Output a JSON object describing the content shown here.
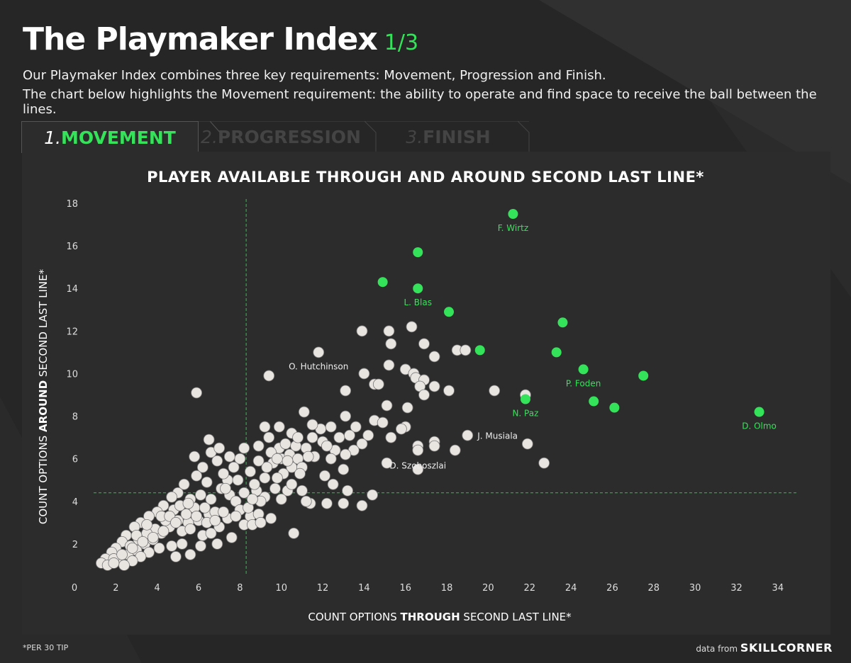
{
  "header": {
    "title": "The Playmaker Index",
    "page": "1/3",
    "line1": "Our Playmaker Index combines three key requirements: Movement, Progression and Finish.",
    "line2": "The chart below highlights the Movement requirement: the ability to operate and find space to receive the ball between the lines."
  },
  "tabs": [
    {
      "num": "1.",
      "label": "MOVEMENT",
      "active": true
    },
    {
      "num": "2.",
      "label": "PROGRESSION",
      "active": false
    },
    {
      "num": "3.",
      "label": "FINISH",
      "active": false
    }
  ],
  "footer": {
    "note": "*PER 30 TIP",
    "credit_prefix": "data from",
    "credit_brand": "SKILLCORNER"
  },
  "colors": {
    "background": "#262626",
    "panel": "#2c2c2c",
    "highlight": "#35e35a",
    "point": "#e8e4e0",
    "point_stroke": "#777777"
  },
  "chart_data": {
    "type": "scatter",
    "title": "PLAYER AVAILABLE THROUGH AND AROUND SECOND LAST LINE*",
    "xlabel_parts": [
      "COUNT OPTIONS ",
      "THROUGH",
      " SECOND LAST LINE*"
    ],
    "ylabel_parts": [
      "COUNT OPTIONS ",
      "AROUND",
      " SECOND LAST LINE*"
    ],
    "xlim": [
      0,
      35
    ],
    "ylim": [
      0,
      18
    ],
    "xticks": [
      0,
      2,
      4,
      6,
      8,
      10,
      12,
      14,
      16,
      18,
      20,
      22,
      24,
      26,
      28,
      30,
      32,
      34
    ],
    "yticks": [
      0,
      2,
      4,
      6,
      8,
      10,
      12,
      14,
      16,
      18
    ],
    "reference_lines": {
      "x": 8.3,
      "y": 4.4
    },
    "highlighted": [
      {
        "x": 21.2,
        "y": 17.5,
        "label": "F. Wirtz"
      },
      {
        "x": 16.6,
        "y": 15.7,
        "label": ""
      },
      {
        "x": 14.9,
        "y": 14.3,
        "label": ""
      },
      {
        "x": 16.6,
        "y": 14.0,
        "label": "L. Blas"
      },
      {
        "x": 18.1,
        "y": 12.9,
        "label": ""
      },
      {
        "x": 23.6,
        "y": 12.4,
        "label": ""
      },
      {
        "x": 19.6,
        "y": 11.1,
        "label": ""
      },
      {
        "x": 23.3,
        "y": 11.0,
        "label": ""
      },
      {
        "x": 24.6,
        "y": 10.2,
        "label": "P. Foden"
      },
      {
        "x": 27.5,
        "y": 9.9,
        "label": ""
      },
      {
        "x": 21.8,
        "y": 8.8,
        "label": "N. Paz"
      },
      {
        "x": 25.1,
        "y": 8.7,
        "label": ""
      },
      {
        "x": 26.1,
        "y": 8.4,
        "label": ""
      },
      {
        "x": 33.1,
        "y": 8.2,
        "label": "D. Olmo"
      }
    ],
    "labeled_others": [
      {
        "x": 11.8,
        "y": 11.0,
        "label": "O. Hutchinson"
      },
      {
        "x": 19.0,
        "y": 7.1,
        "label": "J. Musiala"
      },
      {
        "x": 16.6,
        "y": 6.4,
        "label": "D. Szoboszlai"
      }
    ],
    "others": [
      [
        5.9,
        9.1
      ],
      [
        9.4,
        9.9
      ],
      [
        13.9,
        12.0
      ],
      [
        15.2,
        12.0
      ],
      [
        16.3,
        12.2
      ],
      [
        15.3,
        11.4
      ],
      [
        16.9,
        11.4
      ],
      [
        17.4,
        10.8
      ],
      [
        18.5,
        11.1
      ],
      [
        18.9,
        11.1
      ],
      [
        15.2,
        10.4
      ],
      [
        16.0,
        10.2
      ],
      [
        16.4,
        10.0
      ],
      [
        14.0,
        10.0
      ],
      [
        14.5,
        9.5
      ],
      [
        14.7,
        9.5
      ],
      [
        13.1,
        9.2
      ],
      [
        16.5,
        9.8
      ],
      [
        16.9,
        9.7
      ],
      [
        16.7,
        9.4
      ],
      [
        17.4,
        9.4
      ],
      [
        16.9,
        9.0
      ],
      [
        18.1,
        9.2
      ],
      [
        20.3,
        9.2
      ],
      [
        21.8,
        9.0
      ],
      [
        16.1,
        8.4
      ],
      [
        15.1,
        8.5
      ],
      [
        13.1,
        8.0
      ],
      [
        14.5,
        7.8
      ],
      [
        14.9,
        7.7
      ],
      [
        16.0,
        7.5
      ],
      [
        15.8,
        7.4
      ],
      [
        15.3,
        7.0
      ],
      [
        14.2,
        7.1
      ],
      [
        13.9,
        6.7
      ],
      [
        13.5,
        6.4
      ],
      [
        13.1,
        6.2
      ],
      [
        16.6,
        6.6
      ],
      [
        17.4,
        6.8
      ],
      [
        17.4,
        6.6
      ],
      [
        18.4,
        6.4
      ],
      [
        21.9,
        6.7
      ],
      [
        22.7,
        5.8
      ],
      [
        15.1,
        5.8
      ],
      [
        16.6,
        5.5
      ],
      [
        12.0,
        6.8
      ],
      [
        12.6,
        6.4
      ],
      [
        12.4,
        6.0
      ],
      [
        13.0,
        5.5
      ],
      [
        12.1,
        5.2
      ],
      [
        12.5,
        4.8
      ],
      [
        13.2,
        4.5
      ],
      [
        14.4,
        4.3
      ],
      [
        12.2,
        3.9
      ],
      [
        13.0,
        3.9
      ],
      [
        13.9,
        3.8
      ],
      [
        11.4,
        3.9
      ],
      [
        11.2,
        4.0
      ],
      [
        10.6,
        2.5
      ],
      [
        9.5,
        3.2
      ],
      [
        9.2,
        4.2
      ],
      [
        9.2,
        5.1
      ],
      [
        8.8,
        4.5
      ],
      [
        9.7,
        4.6
      ],
      [
        10.3,
        4.5
      ],
      [
        11.0,
        4.5
      ],
      [
        10.5,
        4.8
      ],
      [
        10.5,
        5.6
      ],
      [
        10.0,
        6.0
      ],
      [
        10.4,
        6.2
      ],
      [
        10.8,
        6.0
      ],
      [
        11.2,
        6.5
      ],
      [
        11.5,
        7.0
      ],
      [
        11.9,
        7.4
      ],
      [
        11.5,
        7.6
      ],
      [
        10.5,
        7.2
      ],
      [
        9.2,
        7.5
      ],
      [
        9.4,
        7.0
      ],
      [
        8.9,
        6.6
      ],
      [
        9.9,
        6.5
      ],
      [
        8.2,
        6.5
      ],
      [
        8.0,
        6.0
      ],
      [
        7.7,
        5.6
      ],
      [
        7.4,
        5.0
      ],
      [
        7.1,
        4.6
      ],
      [
        6.6,
        4.1
      ],
      [
        6.5,
        3.4
      ],
      [
        6.0,
        3.1
      ],
      [
        5.5,
        3.0
      ],
      [
        5.2,
        2.6
      ],
      [
        6.8,
        3.5
      ],
      [
        7.5,
        4.3
      ],
      [
        7.8,
        4.0
      ],
      [
        6.4,
        4.9
      ],
      [
        6.2,
        5.6
      ],
      [
        5.8,
        6.1
      ],
      [
        6.6,
        6.3
      ],
      [
        5.3,
        4.8
      ],
      [
        5.9,
        5.2
      ],
      [
        5.0,
        4.4
      ],
      [
        4.7,
        4.2
      ],
      [
        4.3,
        3.8
      ],
      [
        4.0,
        3.5
      ],
      [
        3.6,
        3.3
      ],
      [
        3.2,
        3.0
      ],
      [
        2.9,
        2.8
      ],
      [
        2.5,
        2.4
      ],
      [
        2.3,
        2.1
      ],
      [
        2.0,
        1.8
      ],
      [
        1.8,
        1.6
      ],
      [
        1.5,
        1.3
      ],
      [
        1.3,
        1.1
      ],
      [
        1.6,
        1.0
      ],
      [
        2.2,
        1.3
      ],
      [
        2.6,
        1.5
      ],
      [
        3.0,
        1.7
      ],
      [
        3.4,
        2.0
      ],
      [
        3.8,
        2.2
      ],
      [
        4.2,
        2.5
      ],
      [
        4.6,
        2.8
      ],
      [
        5.0,
        3.1
      ],
      [
        5.4,
        3.4
      ],
      [
        5.8,
        3.7
      ],
      [
        4.4,
        3.1
      ],
      [
        3.9,
        2.7
      ],
      [
        3.5,
        2.5
      ],
      [
        3.1,
        2.2
      ],
      [
        2.7,
        1.9
      ],
      [
        4.8,
        3.6
      ],
      [
        5.6,
        2.7
      ],
      [
        6.2,
        2.4
      ],
      [
        7.0,
        2.8
      ],
      [
        7.4,
        3.2
      ],
      [
        8.0,
        3.6
      ],
      [
        8.5,
        3.3
      ],
      [
        8.2,
        2.9
      ],
      [
        6.6,
        2.5
      ],
      [
        5.2,
        2.0
      ],
      [
        4.7,
        1.9
      ],
      [
        4.1,
        1.8
      ],
      [
        3.6,
        1.6
      ],
      [
        3.2,
        1.4
      ],
      [
        2.8,
        1.2
      ],
      [
        1.9,
        1.3
      ],
      [
        2.4,
        1.0
      ],
      [
        4.9,
        1.4
      ],
      [
        5.6,
        1.5
      ],
      [
        6.1,
        1.9
      ],
      [
        6.9,
        2.0
      ],
      [
        7.6,
        2.3
      ],
      [
        8.6,
        2.9
      ],
      [
        8.9,
        3.4
      ],
      [
        9.0,
        4.0
      ],
      [
        8.7,
        4.8
      ],
      [
        8.5,
        5.4
      ],
      [
        7.2,
        5.3
      ],
      [
        6.9,
        5.9
      ],
      [
        7.0,
        6.5
      ],
      [
        6.5,
        6.9
      ],
      [
        7.5,
        6.1
      ],
      [
        9.6,
        5.8
      ],
      [
        10.1,
        5.3
      ],
      [
        11.0,
        5.6
      ],
      [
        11.6,
        6.1
      ],
      [
        12.4,
        7.5
      ],
      [
        12.8,
        7.0
      ],
      [
        13.3,
        7.1
      ],
      [
        13.6,
        7.5
      ],
      [
        12.2,
        6.6
      ],
      [
        9.8,
        5.1
      ],
      [
        9.3,
        5.6
      ],
      [
        8.9,
        5.9
      ],
      [
        9.5,
        6.3
      ],
      [
        10.2,
        6.7
      ],
      [
        10.7,
        6.6
      ],
      [
        11.3,
        6.1
      ],
      [
        10.9,
        5.3
      ],
      [
        10.3,
        5.9
      ],
      [
        9.8,
        6.0
      ],
      [
        8.2,
        4.4
      ],
      [
        7.3,
        4.6
      ],
      [
        7.9,
        5.0
      ],
      [
        5.6,
        4.1
      ],
      [
        6.1,
        4.3
      ],
      [
        3.0,
        2.4
      ],
      [
        3.5,
        2.9
      ],
      [
        4.2,
        3.3
      ],
      [
        4.6,
        3.3
      ],
      [
        5.1,
        3.8
      ],
      [
        5.5,
        3.9
      ],
      [
        4.9,
        3.0
      ],
      [
        4.3,
        2.6
      ],
      [
        3.8,
        2.3
      ],
      [
        3.3,
        2.1
      ],
      [
        2.8,
        1.8
      ],
      [
        2.3,
        1.5
      ],
      [
        1.9,
        1.1
      ],
      [
        6.4,
        3.0
      ],
      [
        6.8,
        3.1
      ],
      [
        7.2,
        3.5
      ],
      [
        7.8,
        3.3
      ],
      [
        8.4,
        3.7
      ],
      [
        9.0,
        3.0
      ],
      [
        8.6,
        4.1
      ],
      [
        6.3,
        3.7
      ],
      [
        5.9,
        3.3
      ],
      [
        10.0,
        4.1
      ],
      [
        11.1,
        8.2
      ],
      [
        10.8,
        7.0
      ],
      [
        9.9,
        7.5
      ]
    ]
  }
}
